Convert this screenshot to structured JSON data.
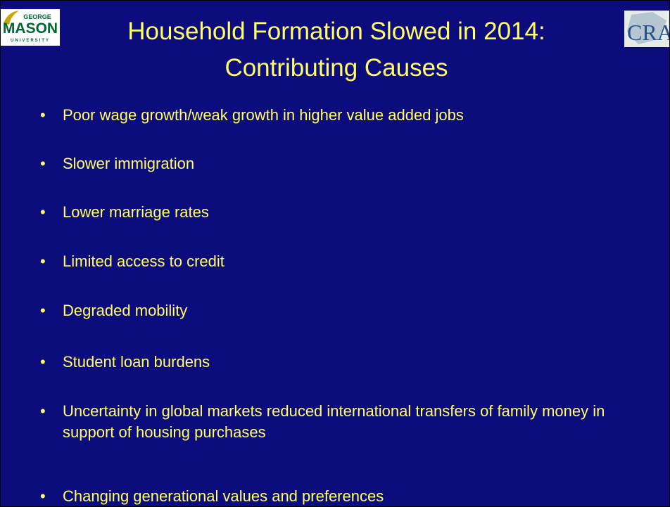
{
  "header": {
    "title_lines": [
      "Household Formation Slowed in 2014:",
      "Contributing Causes"
    ],
    "left_logo": {
      "top": "GEORGE",
      "main": "MASON",
      "bottom": "UNIVERSITY"
    },
    "right_logo": "CRA"
  },
  "bullets": [
    "Poor wage growth/weak growth in higher value added jobs",
    "Slower immigration",
    "Lower marriage rates",
    "Limited access to credit",
    "Degraded mobility",
    "Student loan burdens",
    "Uncertainty in global markets reduced international transfers of family money in support of housing purchases",
    "Changing generational values and preferences"
  ]
}
